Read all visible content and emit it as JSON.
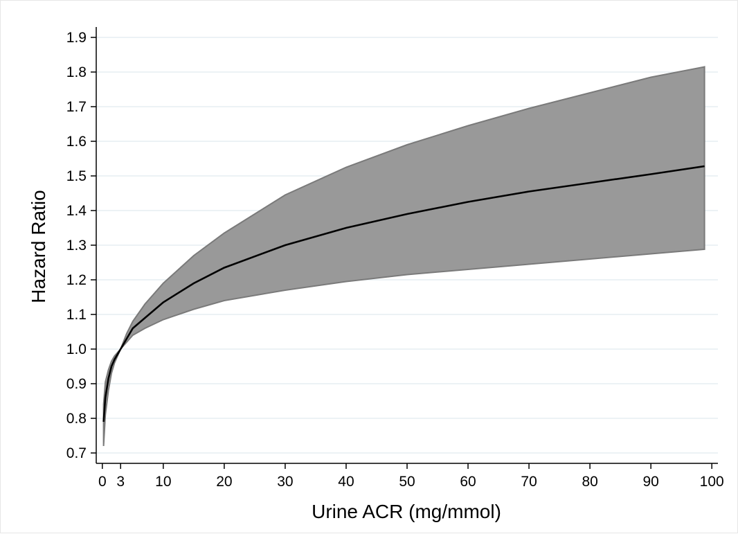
{
  "chart_data": {
    "type": "area",
    "title": "",
    "xlabel": "Urine ACR (mg/mmol)",
    "ylabel": "Hazard Ratio",
    "xlim": [
      -1,
      101
    ],
    "ylim": [
      0.67,
      1.93
    ],
    "x_ticks": [
      0,
      3,
      10,
      20,
      30,
      40,
      50,
      60,
      70,
      80,
      90,
      100
    ],
    "x_tick_labels": [
      "0",
      "3",
      "10",
      "20",
      "30",
      "40",
      "50",
      "60",
      "70",
      "80",
      "90",
      "100"
    ],
    "y_ticks": [
      0.7,
      0.8,
      0.9,
      1.0,
      1.1,
      1.2,
      1.3,
      1.4,
      1.5,
      1.6,
      1.7,
      1.8,
      1.9
    ],
    "y_tick_labels": [
      "0.7",
      "0.8",
      "0.9",
      "1.0",
      "1.1",
      "1.2",
      "1.3",
      "1.4",
      "1.5",
      "1.6",
      "1.7",
      "1.8",
      "1.9"
    ],
    "grid": "horizontal",
    "colors": {
      "band": "#999999",
      "band_edge": "#7a7a7a",
      "line": "#000000",
      "grid": "#e6eef2"
    },
    "x": [
      0.2,
      0.5,
      1,
      1.5,
      2,
      3,
      4,
      5,
      7,
      10,
      15,
      20,
      30,
      40,
      50,
      60,
      70,
      80,
      90,
      98.8
    ],
    "series": [
      {
        "role": "estimate",
        "values": [
          0.79,
          0.86,
          0.915,
          0.95,
          0.97,
          1.0,
          1.03,
          1.06,
          1.09,
          1.135,
          1.19,
          1.235,
          1.3,
          1.35,
          1.39,
          1.425,
          1.455,
          1.48,
          1.505,
          1.528
        ]
      },
      {
        "role": "upper",
        "values": [
          0.84,
          0.905,
          0.94,
          0.965,
          0.98,
          1.0,
          1.045,
          1.08,
          1.13,
          1.19,
          1.27,
          1.335,
          1.445,
          1.525,
          1.59,
          1.645,
          1.695,
          1.74,
          1.785,
          1.815
        ]
      },
      {
        "role": "lower",
        "values": [
          0.72,
          0.81,
          0.88,
          0.93,
          0.96,
          1.0,
          1.02,
          1.04,
          1.06,
          1.085,
          1.115,
          1.14,
          1.17,
          1.195,
          1.215,
          1.23,
          1.245,
          1.26,
          1.275,
          1.288
        ]
      }
    ]
  }
}
